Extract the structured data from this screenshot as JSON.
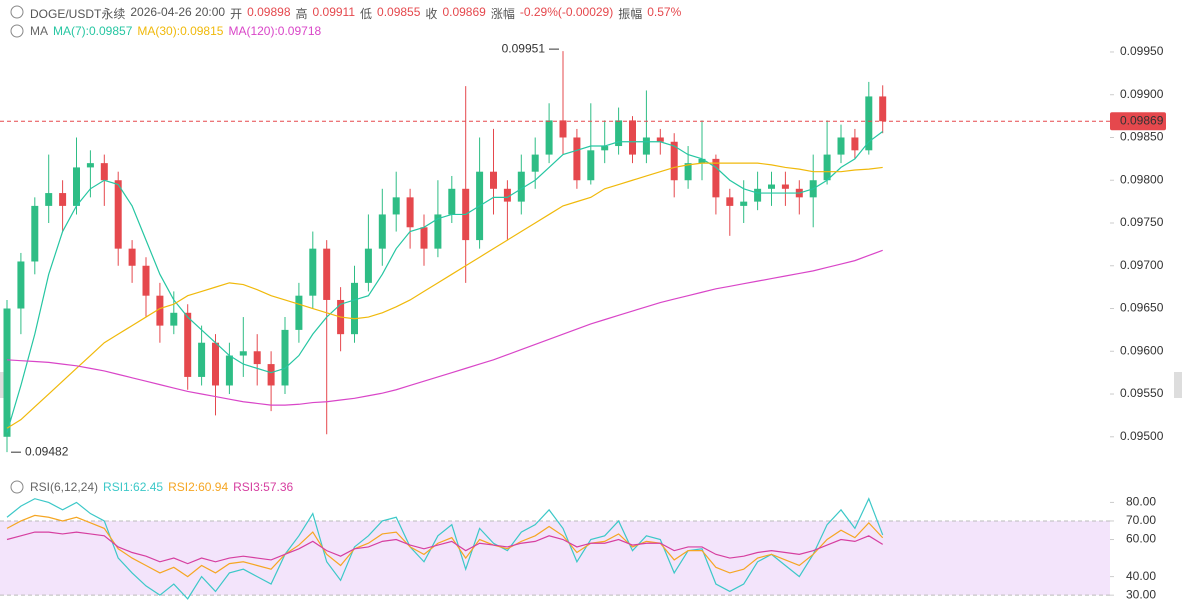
{
  "header": {
    "symbol": "DOGE/USDT永续",
    "time": "2026-04-26 20:00",
    "fields": [
      {
        "label": "开",
        "value": "0.09898"
      },
      {
        "label": "高",
        "value": "0.09911"
      },
      {
        "label": "低",
        "value": "0.09855"
      },
      {
        "label": "收",
        "value": "0.09869"
      },
      {
        "label": "涨幅",
        "value": "-0.29%(-0.00029)"
      },
      {
        "label": "振幅",
        "value": "0.57%"
      }
    ]
  },
  "chart_data": [
    {
      "type": "candlestick",
      "legend_title": "MA",
      "up_color": "#2ebd85",
      "down_color": "#e5484d",
      "open": [
        0.095,
        0.0965,
        0.09705,
        0.0977,
        0.09785,
        0.0977,
        0.09815,
        0.0982,
        0.098,
        0.0972,
        0.097,
        0.09665,
        0.0963,
        0.09645,
        0.0957,
        0.0961,
        0.0956,
        0.09595,
        0.096,
        0.09585,
        0.0956,
        0.09625,
        0.09665,
        0.0972,
        0.0966,
        0.0962,
        0.0968,
        0.0972,
        0.0976,
        0.0978,
        0.09745,
        0.0972,
        0.0976,
        0.0979,
        0.0973,
        0.0981,
        0.0979,
        0.09775,
        0.0981,
        0.0983,
        0.0987,
        0.0985,
        0.098,
        0.09835,
        0.0984,
        0.0987,
        0.0983,
        0.0985,
        0.09845,
        0.098,
        0.0982,
        0.09825,
        0.0978,
        0.0977,
        0.09775,
        0.0979,
        0.09795,
        0.0979,
        0.0978,
        0.098,
        0.0983,
        0.0985,
        0.09835,
        0.09898
      ],
      "high": [
        0.0966,
        0.09715,
        0.0978,
        0.0983,
        0.098,
        0.0985,
        0.09835,
        0.0983,
        0.0981,
        0.0973,
        0.0971,
        0.0968,
        0.0967,
        0.09655,
        0.0963,
        0.0962,
        0.0961,
        0.0964,
        0.0962,
        0.096,
        0.0964,
        0.0968,
        0.0974,
        0.0973,
        0.09675,
        0.097,
        0.0976,
        0.0979,
        0.0981,
        0.0979,
        0.0976,
        0.098,
        0.09805,
        0.0991,
        0.0985,
        0.0986,
        0.098,
        0.0983,
        0.0985,
        0.0989,
        0.09951,
        0.0986,
        0.0989,
        0.0987,
        0.09885,
        0.09875,
        0.09905,
        0.0986,
        0.09855,
        0.0984,
        0.0987,
        0.0983,
        0.0979,
        0.098,
        0.0981,
        0.0981,
        0.0981,
        0.098,
        0.0983,
        0.0987,
        0.09865,
        0.0986,
        0.09915,
        0.09911
      ],
      "low": [
        0.09482,
        0.0962,
        0.0969,
        0.0975,
        0.0974,
        0.0976,
        0.0978,
        0.0977,
        0.097,
        0.0968,
        0.0964,
        0.0961,
        0.0962,
        0.09555,
        0.0956,
        0.09525,
        0.0955,
        0.0957,
        0.0956,
        0.0953,
        0.0955,
        0.0961,
        0.0965,
        0.09503,
        0.096,
        0.0961,
        0.0967,
        0.097,
        0.0974,
        0.0972,
        0.097,
        0.0971,
        0.0975,
        0.0968,
        0.0972,
        0.0976,
        0.0973,
        0.0976,
        0.0979,
        0.0982,
        0.0983,
        0.0979,
        0.09795,
        0.0982,
        0.0983,
        0.0982,
        0.0982,
        0.0983,
        0.0978,
        0.0979,
        0.098,
        0.0976,
        0.09735,
        0.0975,
        0.09765,
        0.0977,
        0.0977,
        0.0976,
        0.09745,
        0.09795,
        0.0982,
        0.09825,
        0.0983,
        0.09855
      ],
      "close": [
        0.0965,
        0.09705,
        0.0977,
        0.09785,
        0.0977,
        0.09815,
        0.0982,
        0.098,
        0.0972,
        0.097,
        0.09665,
        0.0963,
        0.09645,
        0.0957,
        0.0961,
        0.0956,
        0.09595,
        0.096,
        0.09585,
        0.0956,
        0.09625,
        0.09665,
        0.0972,
        0.0966,
        0.0962,
        0.0968,
        0.0972,
        0.0976,
        0.0978,
        0.09745,
        0.0972,
        0.0976,
        0.0979,
        0.0973,
        0.0981,
        0.0979,
        0.09775,
        0.0981,
        0.0983,
        0.0987,
        0.0985,
        0.098,
        0.09835,
        0.0984,
        0.0987,
        0.0983,
        0.0985,
        0.09845,
        0.098,
        0.0982,
        0.09825,
        0.0978,
        0.0977,
        0.09775,
        0.0979,
        0.09795,
        0.0979,
        0.0978,
        0.098,
        0.0983,
        0.0985,
        0.09835,
        0.09898,
        0.09869
      ],
      "series": [
        {
          "name": "MA(7):0.09857",
          "color": "#26c6a2",
          "values": [
            0.09505,
            0.0956,
            0.0962,
            0.0969,
            0.0974,
            0.0977,
            0.0979,
            0.098,
            0.09795,
            0.0977,
            0.0973,
            0.0969,
            0.0966,
            0.0964,
            0.09625,
            0.0961,
            0.09595,
            0.09585,
            0.0958,
            0.09575,
            0.0958,
            0.09595,
            0.0962,
            0.0964,
            0.09655,
            0.0966,
            0.09665,
            0.0969,
            0.0972,
            0.0974,
            0.09745,
            0.09755,
            0.0976,
            0.0976,
            0.0977,
            0.0978,
            0.0978,
            0.0979,
            0.098,
            0.09815,
            0.0983,
            0.09835,
            0.0984,
            0.0984,
            0.09845,
            0.09845,
            0.09845,
            0.09845,
            0.0984,
            0.0983,
            0.09825,
            0.09815,
            0.098,
            0.0979,
            0.09785,
            0.09785,
            0.09785,
            0.09785,
            0.0979,
            0.098,
            0.09815,
            0.09825,
            0.09845,
            0.09857
          ]
        },
        {
          "name": "MA(30):0.09815",
          "color": "#f0b90b",
          "values": [
            0.0951,
            0.0952,
            0.09535,
            0.0955,
            0.09565,
            0.0958,
            0.09595,
            0.0961,
            0.0962,
            0.0963,
            0.0964,
            0.0965,
            0.09655,
            0.09665,
            0.0967,
            0.09675,
            0.0968,
            0.09678,
            0.09672,
            0.09665,
            0.0966,
            0.09655,
            0.0965,
            0.09645,
            0.0964,
            0.09638,
            0.0964,
            0.09645,
            0.09652,
            0.0966,
            0.0967,
            0.0968,
            0.0969,
            0.097,
            0.0971,
            0.0972,
            0.0973,
            0.0974,
            0.0975,
            0.0976,
            0.0977,
            0.09775,
            0.0978,
            0.0979,
            0.09795,
            0.098,
            0.09805,
            0.0981,
            0.09815,
            0.09818,
            0.0982,
            0.0982,
            0.0982,
            0.0982,
            0.0982,
            0.09818,
            0.09815,
            0.09813,
            0.0981,
            0.0981,
            0.0981,
            0.09812,
            0.09813,
            0.09815
          ]
        },
        {
          "name": "MA(120):0.09718",
          "color": "#d946c8",
          "values": [
            0.0959,
            0.09589,
            0.09588,
            0.09587,
            0.09585,
            0.09583,
            0.0958,
            0.09577,
            0.09573,
            0.09569,
            0.09565,
            0.09561,
            0.09557,
            0.09553,
            0.0955,
            0.09547,
            0.09544,
            0.09541,
            0.09539,
            0.09537,
            0.09537,
            0.09538,
            0.0954,
            0.09541,
            0.09543,
            0.09545,
            0.09548,
            0.09551,
            0.09555,
            0.0956,
            0.09565,
            0.0957,
            0.09575,
            0.0958,
            0.09585,
            0.0959,
            0.09596,
            0.09602,
            0.09608,
            0.09614,
            0.0962,
            0.09626,
            0.09632,
            0.09637,
            0.09642,
            0.09647,
            0.09652,
            0.09657,
            0.09661,
            0.09665,
            0.09669,
            0.09673,
            0.09676,
            0.09679,
            0.09682,
            0.09685,
            0.09688,
            0.09691,
            0.09694,
            0.09698,
            0.09702,
            0.09706,
            0.09712,
            0.09718
          ]
        }
      ],
      "ylim": [
        0.09467,
        0.09964
      ],
      "yticks": [
        {
          "value": 0.095,
          "label": "0.09500"
        },
        {
          "value": 0.0955,
          "label": "0.09550"
        },
        {
          "value": 0.096,
          "label": "0.09600"
        },
        {
          "value": 0.0965,
          "label": "0.09650"
        },
        {
          "value": 0.097,
          "label": "0.09700"
        },
        {
          "value": 0.0975,
          "label": "0.09750"
        },
        {
          "value": 0.098,
          "label": "0.09800"
        },
        {
          "value": 0.0985,
          "label": "0.09850"
        },
        {
          "value": 0.099,
          "label": "0.09900"
        },
        {
          "value": 0.0995,
          "label": "0.09950"
        }
      ],
      "high_label": {
        "value": 0.09951,
        "label": "0.09951"
      },
      "low_label": {
        "value": 0.09482,
        "label": "0.09482"
      },
      "last_price": {
        "value": 0.09869,
        "label": "0.09869"
      }
    },
    {
      "type": "line",
      "title": "RSI(6,12,24)",
      "band": [
        30,
        70
      ],
      "band_color": "#f3e4fb",
      "series": [
        {
          "name": "RSI1:62.45",
          "color": "#3cc8c8",
          "values": [
            72,
            78,
            82,
            80,
            76,
            80,
            74,
            70,
            50,
            42,
            35,
            30,
            36,
            28,
            40,
            32,
            42,
            44,
            40,
            36,
            52,
            62,
            74,
            48,
            38,
            56,
            62,
            70,
            72,
            56,
            48,
            62,
            68,
            44,
            66,
            58,
            54,
            64,
            68,
            76,
            66,
            48,
            60,
            62,
            70,
            54,
            62,
            60,
            42,
            54,
            55,
            36,
            32,
            36,
            48,
            52,
            46,
            40,
            52,
            68,
            76,
            66,
            82,
            62.45
          ]
        },
        {
          "name": "RSI2:60.94",
          "color": "#f5a623",
          "values": [
            66,
            70,
            73,
            72,
            70,
            72,
            69,
            66,
            55,
            50,
            46,
            42,
            45,
            40,
            46,
            42,
            47,
            48,
            46,
            44,
            52,
            57,
            64,
            52,
            46,
            55,
            58,
            63,
            64,
            56,
            52,
            58,
            61,
            50,
            60,
            57,
            55,
            59,
            62,
            67,
            62,
            53,
            58,
            59,
            63,
            56,
            59,
            58,
            49,
            54,
            54,
            45,
            42,
            44,
            50,
            52,
            49,
            46,
            52,
            60,
            65,
            61,
            69,
            60.94
          ]
        },
        {
          "name": "RSI3:57.36",
          "color": "#d63fa0",
          "values": [
            60,
            62,
            64,
            64,
            63,
            64,
            63,
            62,
            56,
            53,
            51,
            48,
            50,
            47,
            50,
            48,
            50,
            51,
            50,
            49,
            52,
            55,
            59,
            54,
            51,
            55,
            56,
            59,
            60,
            57,
            55,
            57,
            59,
            54,
            58,
            57,
            56,
            58,
            59,
            62,
            60,
            56,
            58,
            58,
            60,
            57,
            58,
            58,
            54,
            56,
            56,
            52,
            50,
            51,
            53,
            54,
            53,
            52,
            54,
            57,
            60,
            59,
            62,
            57.36
          ]
        }
      ],
      "ylim": [
        22,
        84
      ],
      "yticks": [
        {
          "value": 30,
          "label": "30.00"
        },
        {
          "value": 40,
          "label": "40.00"
        },
        {
          "value": 60,
          "label": "60.00"
        },
        {
          "value": 70,
          "label": "70.00"
        },
        {
          "value": 80,
          "label": "80.00"
        }
      ]
    }
  ]
}
